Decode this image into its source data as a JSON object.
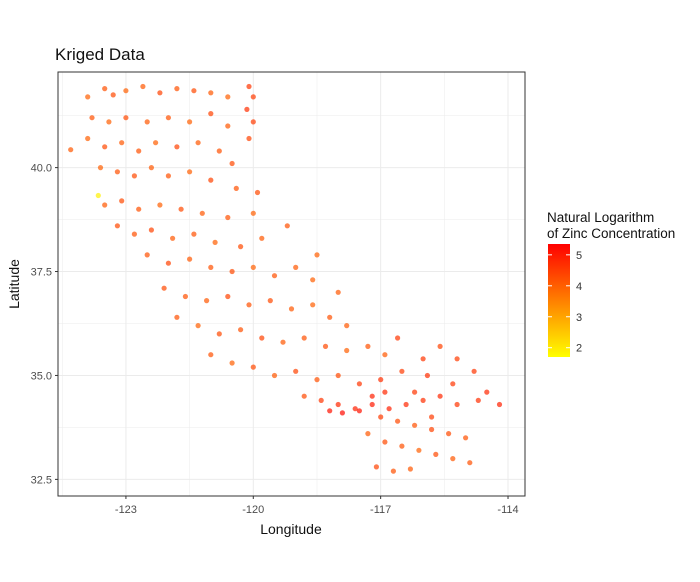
{
  "chart_data": {
    "type": "scatter",
    "title": "Kriged Data",
    "xlabel": "Longitude",
    "ylabel": "Latitude",
    "xlim": [
      -124.6,
      -113.6
    ],
    "ylim": [
      32.1,
      42.3
    ],
    "x_ticks": [
      -123,
      -120,
      -117,
      -114
    ],
    "x_tick_labels": [
      "-123",
      "-120",
      "-117",
      "-114"
    ],
    "y_ticks": [
      32.5,
      35.0,
      37.5,
      40.0
    ],
    "y_tick_labels": [
      "32.5",
      "35.0",
      "37.5",
      "40.0"
    ],
    "grid": true,
    "legend": {
      "title_lines": [
        "Natural Logarithm",
        "of Zinc Concentration"
      ],
      "placement": "right",
      "range": [
        1.7,
        5.35
      ],
      "ticks": [
        2,
        3,
        4,
        5
      ],
      "tick_labels": [
        "2",
        "3",
        "4",
        "5"
      ],
      "color_low": "#FFFF00",
      "color_high": "#FF0000"
    },
    "point_opacity": 0.7,
    "points": [
      [
        -124.3,
        40.43,
        4.1
      ],
      [
        -123.65,
        39.33,
        1.9
      ],
      [
        -123.9,
        41.7,
        4.0
      ],
      [
        -123.5,
        41.9,
        4.2
      ],
      [
        -123.3,
        41.75,
        4.3
      ],
      [
        -123.0,
        41.85,
        4.0
      ],
      [
        -122.6,
        41.95,
        4.1
      ],
      [
        -122.2,
        41.8,
        4.4
      ],
      [
        -121.8,
        41.9,
        4.2
      ],
      [
        -121.4,
        41.85,
        4.3
      ],
      [
        -121.0,
        41.8,
        4.1
      ],
      [
        -120.6,
        41.7,
        4.0
      ],
      [
        -123.8,
        41.2,
        4.2
      ],
      [
        -123.4,
        41.1,
        4.0
      ],
      [
        -123.0,
        41.2,
        4.3
      ],
      [
        -122.5,
        41.1,
        4.1
      ],
      [
        -122.0,
        41.2,
        4.2
      ],
      [
        -121.5,
        41.1,
        4.0
      ],
      [
        -121.0,
        41.3,
        4.4
      ],
      [
        -120.6,
        41.0,
        4.1
      ],
      [
        -123.9,
        40.7,
        4.0
      ],
      [
        -123.5,
        40.5,
        4.3
      ],
      [
        -123.1,
        40.6,
        4.1
      ],
      [
        -122.7,
        40.4,
        4.2
      ],
      [
        -122.3,
        40.6,
        4.0
      ],
      [
        -121.8,
        40.5,
        4.4
      ],
      [
        -121.3,
        40.6,
        4.1
      ],
      [
        -120.8,
        40.4,
        4.2
      ],
      [
        -120.5,
        40.1,
        4.3
      ],
      [
        -123.6,
        40.0,
        4.0
      ],
      [
        -123.2,
        39.9,
        4.2
      ],
      [
        -122.8,
        39.8,
        4.3
      ],
      [
        -122.4,
        40.0,
        4.1
      ],
      [
        -122.0,
        39.8,
        4.2
      ],
      [
        -121.5,
        39.9,
        4.0
      ],
      [
        -121.0,
        39.7,
        4.4
      ],
      [
        -120.4,
        39.5,
        4.2
      ],
      [
        -123.5,
        39.1,
        4.1
      ],
      [
        -123.1,
        39.2,
        4.3
      ],
      [
        -122.7,
        39.0,
        4.2
      ],
      [
        -122.2,
        39.1,
        4.0
      ],
      [
        -121.7,
        39.0,
        4.3
      ],
      [
        -121.2,
        38.9,
        4.1
      ],
      [
        -120.6,
        38.8,
        4.2
      ],
      [
        -120.0,
        38.9,
        4.0
      ],
      [
        -123.2,
        38.6,
        4.3
      ],
      [
        -122.8,
        38.4,
        4.2
      ],
      [
        -122.4,
        38.5,
        4.4
      ],
      [
        -121.9,
        38.3,
        4.1
      ],
      [
        -121.4,
        38.4,
        4.2
      ],
      [
        -120.9,
        38.2,
        4.0
      ],
      [
        -120.3,
        38.1,
        4.3
      ],
      [
        -119.8,
        38.3,
        4.1
      ],
      [
        -122.5,
        37.9,
        4.2
      ],
      [
        -122.0,
        37.7,
        4.4
      ],
      [
        -121.5,
        37.8,
        4.1
      ],
      [
        -121.0,
        37.6,
        4.2
      ],
      [
        -120.5,
        37.5,
        4.3
      ],
      [
        -120.0,
        37.6,
        4.0
      ],
      [
        -119.5,
        37.4,
        4.2
      ],
      [
        -119.0,
        37.6,
        4.1
      ],
      [
        -118.6,
        37.3,
        4.0
      ],
      [
        -122.1,
        37.1,
        4.3
      ],
      [
        -121.6,
        36.9,
        4.2
      ],
      [
        -121.1,
        36.8,
        4.1
      ],
      [
        -120.6,
        36.9,
        4.4
      ],
      [
        -120.1,
        36.7,
        4.2
      ],
      [
        -119.6,
        36.8,
        4.3
      ],
      [
        -119.1,
        36.6,
        4.1
      ],
      [
        -118.6,
        36.7,
        4.0
      ],
      [
        -118.2,
        36.4,
        4.2
      ],
      [
        -117.8,
        36.2,
        4.1
      ],
      [
        -121.8,
        36.4,
        4.2
      ],
      [
        -121.3,
        36.2,
        4.0
      ],
      [
        -120.8,
        36.0,
        4.3
      ],
      [
        -120.3,
        36.1,
        4.2
      ],
      [
        -119.8,
        35.9,
        4.4
      ],
      [
        -119.3,
        35.8,
        4.1
      ],
      [
        -118.8,
        35.9,
        4.2
      ],
      [
        -118.3,
        35.7,
        4.3
      ],
      [
        -117.8,
        35.6,
        4.0
      ],
      [
        -117.3,
        35.7,
        4.2
      ],
      [
        -116.9,
        35.5,
        4.1
      ],
      [
        -121.0,
        35.5,
        4.2
      ],
      [
        -120.5,
        35.3,
        4.0
      ],
      [
        -120.0,
        35.2,
        4.3
      ],
      [
        -119.5,
        35.0,
        4.1
      ],
      [
        -119.0,
        35.1,
        4.4
      ],
      [
        -118.5,
        34.9,
        4.2
      ],
      [
        -118.0,
        35.0,
        4.3
      ],
      [
        -117.5,
        34.8,
        4.6
      ],
      [
        -117.0,
        34.9,
        4.7
      ],
      [
        -116.5,
        35.1,
        4.5
      ],
      [
        -116.0,
        35.4,
        4.6
      ],
      [
        -115.6,
        35.7,
        4.4
      ],
      [
        -115.2,
        35.4,
        4.5
      ],
      [
        -114.8,
        35.1,
        4.6
      ],
      [
        -114.5,
        34.6,
        4.8
      ],
      [
        -114.2,
        34.3,
        4.9
      ],
      [
        -118.8,
        34.5,
        4.3
      ],
      [
        -118.4,
        34.4,
        4.6
      ],
      [
        -118.0,
        34.3,
        4.8
      ],
      [
        -117.6,
        34.2,
        4.9
      ],
      [
        -117.2,
        34.3,
        5.0
      ],
      [
        -116.8,
        34.2,
        4.9
      ],
      [
        -116.4,
        34.3,
        4.8
      ],
      [
        -116.0,
        34.4,
        4.7
      ],
      [
        -115.6,
        34.5,
        4.8
      ],
      [
        -115.2,
        34.3,
        4.6
      ],
      [
        -118.2,
        34.15,
        5.1
      ],
      [
        -117.9,
        34.1,
        5.2
      ],
      [
        -117.5,
        34.15,
        5.1
      ],
      [
        -117.2,
        34.5,
        4.9
      ],
      [
        -116.9,
        34.6,
        4.8
      ],
      [
        -117.0,
        34.0,
        4.5
      ],
      [
        -116.6,
        33.9,
        4.3
      ],
      [
        -116.2,
        33.8,
        4.2
      ],
      [
        -115.8,
        33.7,
        4.4
      ],
      [
        -115.4,
        33.6,
        4.3
      ],
      [
        -115.0,
        33.5,
        4.2
      ],
      [
        -117.3,
        33.6,
        4.1
      ],
      [
        -116.9,
        33.4,
        4.3
      ],
      [
        -116.5,
        33.3,
        4.2
      ],
      [
        -116.1,
        33.2,
        4.0
      ],
      [
        -115.7,
        33.1,
        4.3
      ],
      [
        -115.3,
        33.0,
        4.1
      ],
      [
        -114.9,
        32.9,
        4.2
      ],
      [
        -117.1,
        32.8,
        4.4
      ],
      [
        -116.7,
        32.7,
        4.2
      ],
      [
        -116.3,
        32.75,
        4.1
      ],
      [
        -120.1,
        41.95,
        4.6
      ],
      [
        -120.0,
        41.7,
        4.5
      ],
      [
        -120.15,
        41.4,
        4.7
      ],
      [
        -120.0,
        41.1,
        4.5
      ],
      [
        -120.1,
        40.7,
        4.4
      ],
      [
        -119.9,
        39.4,
        4.3
      ],
      [
        -119.2,
        38.6,
        4.2
      ],
      [
        -118.5,
        37.9,
        4.0
      ],
      [
        -118.0,
        37.0,
        4.1
      ],
      [
        -116.6,
        35.9,
        4.6
      ],
      [
        -115.9,
        35.0,
        4.7
      ],
      [
        -115.3,
        34.8,
        4.6
      ],
      [
        -114.7,
        34.4,
        4.7
      ],
      [
        -115.8,
        34.0,
        4.5
      ],
      [
        -116.2,
        34.6,
        4.6
      ]
    ]
  }
}
